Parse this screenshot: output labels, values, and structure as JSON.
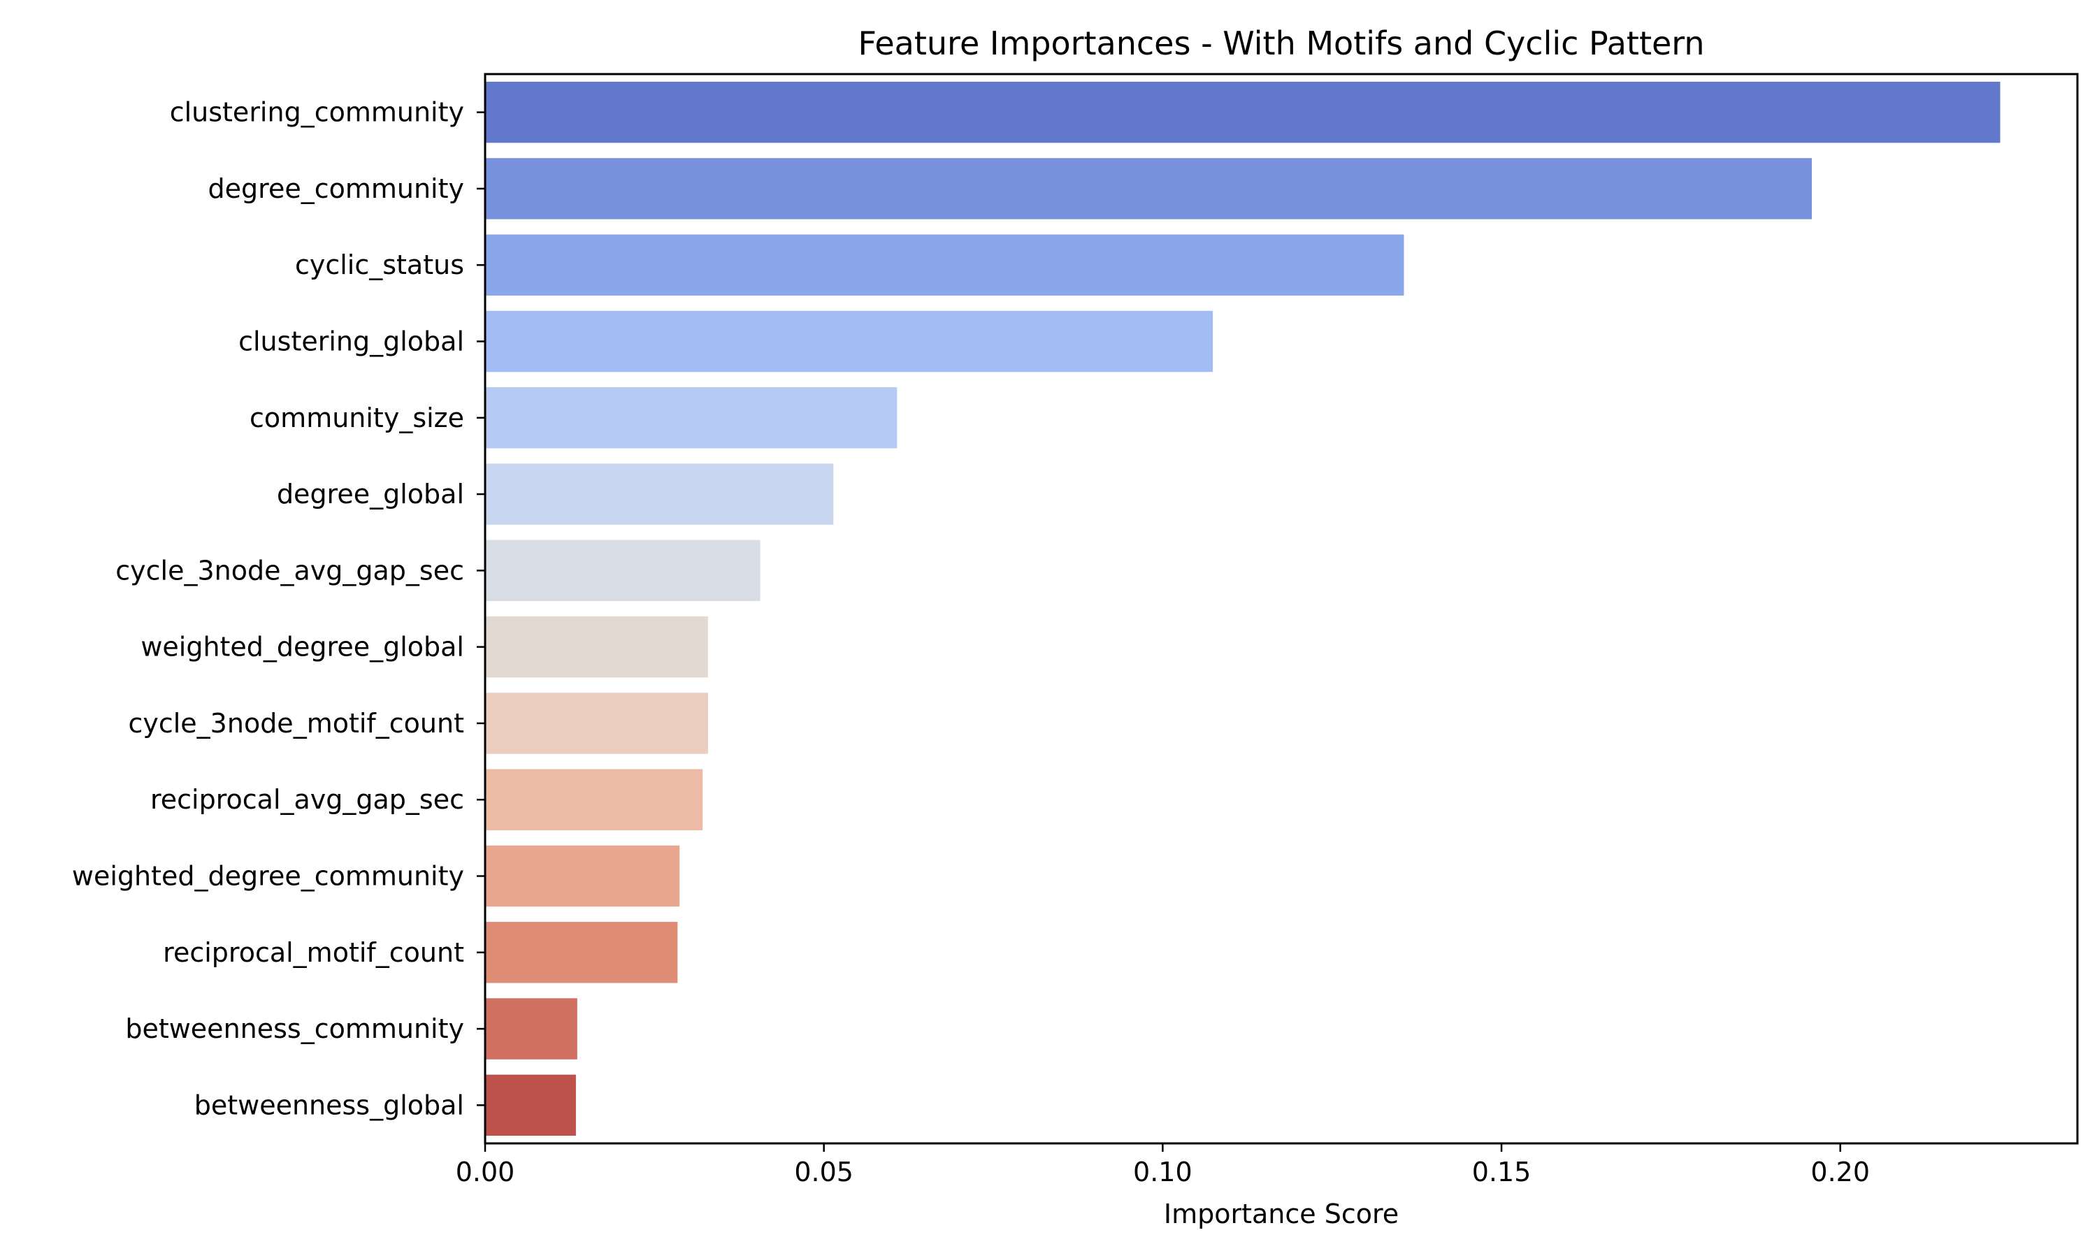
{
  "chart_data": {
    "type": "bar",
    "orientation": "horizontal",
    "title": "Feature Importances - With Motifs and Cyclic Pattern",
    "xlabel": "Importance Score",
    "ylabel": "",
    "xlim": [
      0,
      0.235
    ],
    "xticks": [
      0.0,
      0.05,
      0.1,
      0.15,
      0.2
    ],
    "xtick_labels": [
      "0.00",
      "0.05",
      "0.10",
      "0.15",
      "0.20"
    ],
    "grid": false,
    "legend": "none",
    "categories": [
      "clustering_community",
      "degree_community",
      "cyclic_status",
      "clustering_global",
      "community_size",
      "degree_global",
      "cycle_3node_avg_gap_sec",
      "weighted_degree_global",
      "cycle_3node_motif_count",
      "reciprocal_avg_gap_sec",
      "weighted_degree_community",
      "reciprocal_motif_count",
      "betweenness_community",
      "betweenness_global"
    ],
    "values": [
      0.2236,
      0.1958,
      0.1356,
      0.1074,
      0.0608,
      0.0514,
      0.0406,
      0.0329,
      0.0329,
      0.0321,
      0.0287,
      0.0284,
      0.0136,
      0.0134
    ],
    "colors": [
      "#6278ca",
      "#7791dd",
      "#8ba7eb",
      "#a2bcf4",
      "#b5cbf4",
      "#c8d5ef",
      "#d7dce5",
      "#e3d9d3",
      "#ebcdbf",
      "#edbba5",
      "#e8a78e",
      "#de8c74",
      "#cf7060",
      "#bd524d"
    ]
  }
}
